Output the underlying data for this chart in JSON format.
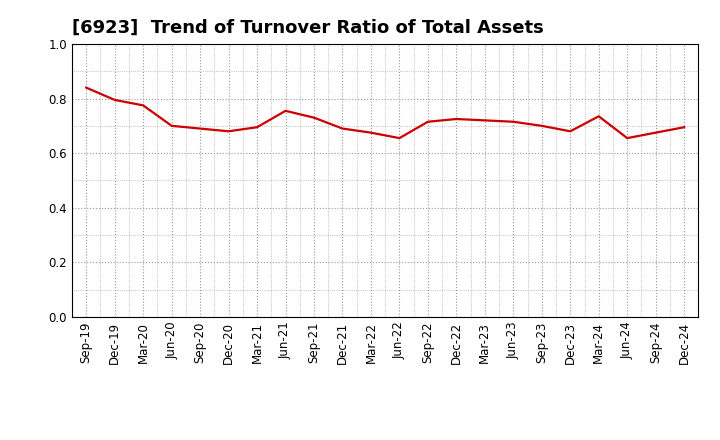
{
  "title": "[6923]  Trend of Turnover Ratio of Total Assets",
  "labels": [
    "Sep-19",
    "Dec-19",
    "Mar-20",
    "Jun-20",
    "Sep-20",
    "Dec-20",
    "Mar-21",
    "Jun-21",
    "Sep-21",
    "Dec-21",
    "Mar-22",
    "Jun-22",
    "Sep-22",
    "Dec-22",
    "Mar-23",
    "Jun-23",
    "Sep-23",
    "Dec-23",
    "Mar-24",
    "Jun-24",
    "Sep-24",
    "Dec-24"
  ],
  "values": [
    0.84,
    0.795,
    0.775,
    0.7,
    0.69,
    0.68,
    0.695,
    0.755,
    0.73,
    0.69,
    0.675,
    0.655,
    0.715,
    0.725,
    0.72,
    0.715,
    0.7,
    0.68,
    0.735,
    0.655,
    0.675,
    0.695
  ],
  "line_color": "#cc0000",
  "line_width": 1.6,
  "ylim": [
    0.0,
    1.0
  ],
  "yticks": [
    0.0,
    0.2,
    0.4,
    0.6,
    0.8,
    1.0
  ],
  "background_color": "#ffffff",
  "plot_bg_color": "#ffffff",
  "grid_color": "#999999",
  "title_fontsize": 13,
  "tick_fontsize": 8.5
}
